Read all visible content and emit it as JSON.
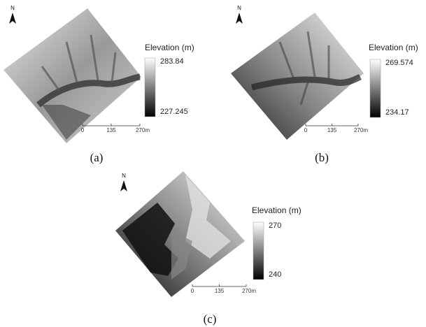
{
  "panels": [
    {
      "caption": "(a)",
      "north": "N",
      "legend_title": "Elevation (m)",
      "legend_max": "283.84",
      "legend_min": "227.245",
      "scale": [
        "0",
        "135",
        "270m"
      ]
    },
    {
      "caption": "(b)",
      "north": "N",
      "legend_title": "Elevation (m)",
      "legend_max": "269.574",
      "legend_min": "234.17",
      "scale": [
        "0",
        "135",
        "270m"
      ]
    },
    {
      "caption": "(c)",
      "north": "N",
      "legend_title": "Elevation (m)",
      "legend_max": "270",
      "legend_min": "240",
      "scale": [
        "0",
        "135",
        "270m"
      ]
    }
  ]
}
